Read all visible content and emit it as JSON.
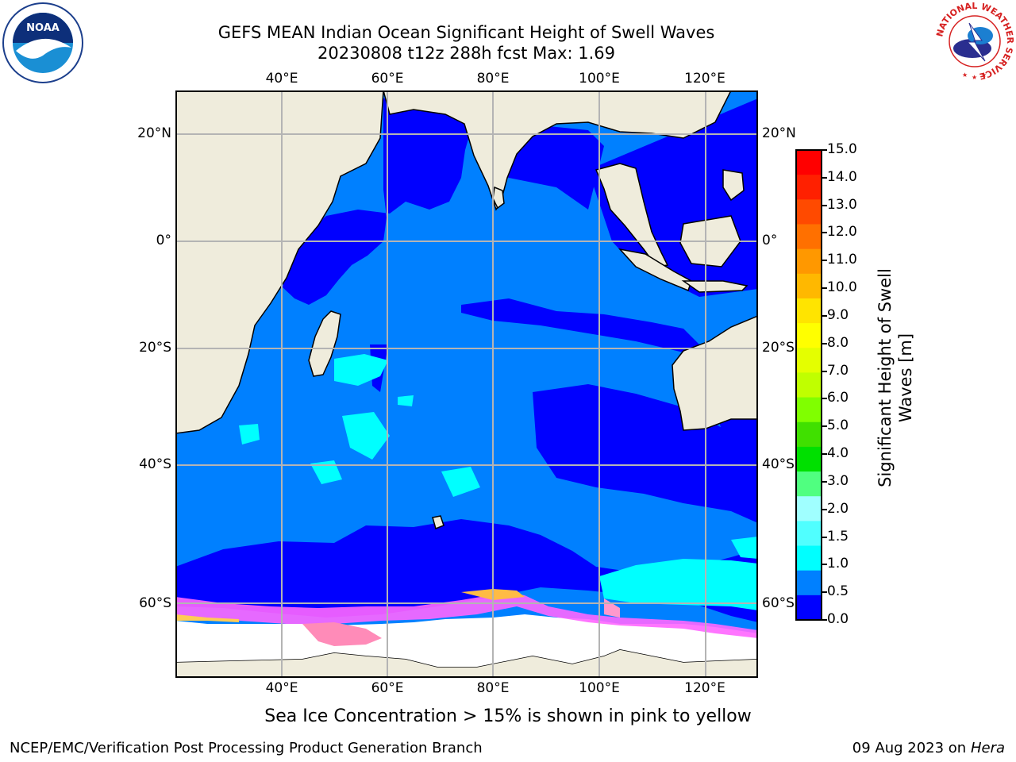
{
  "title": {
    "line1": "GEFS MEAN Indian Ocean Significant Height of Swell Waves",
    "line2": "20230808 t12z 288h fcst   Max: 1.69"
  },
  "map": {
    "lon_labels": [
      "40°E",
      "60°E",
      "80°E",
      "100°E",
      "120°E"
    ],
    "lat_labels": [
      "20°N",
      "0°",
      "20°S",
      "40°S",
      "60°S"
    ],
    "ocean_color": "#0080ff",
    "low_swell_color": "#0000ff",
    "land_color": "#efecdc",
    "ice_color": "#ffffff"
  },
  "colorbar": {
    "label": "Significant Height of Swell Waves [m]",
    "label_line1": "Significant Height of Swell",
    "label_line2": "Waves [m]",
    "ticks": [
      "15.0",
      "14.0",
      "13.0",
      "12.0",
      "11.0",
      "10.0",
      "9.0",
      "8.0",
      "7.0",
      "6.0",
      "5.0",
      "4.0",
      "3.0",
      "2.0",
      "1.5",
      "1.0",
      "0.5",
      "0.0"
    ],
    "colors_top_to_bottom": [
      "#ff0000",
      "#ff2000",
      "#ff4a00",
      "#ff7000",
      "#ff9800",
      "#ffb800",
      "#ffe400",
      "#ffff00",
      "#e4ff00",
      "#c0ff00",
      "#80ff00",
      "#40e000",
      "#00e000",
      "#50ff80",
      "#a0ffff",
      "#50ffff",
      "#00ffff",
      "#0080ff",
      "#0000ff"
    ]
  },
  "ice_note": "Sea Ice Concentration > 15% is shown in pink to yellow",
  "footer": {
    "left": "NCEP/EMC/Verification Post Processing Product Generation Branch",
    "right_date": "09 Aug 2023 on",
    "right_host": "Hera"
  },
  "logos": {
    "noaa": "NOAA",
    "nws_ring": "NATIONAL WEATHER SERVICE"
  },
  "icons": {
    "noaa_logo": "noaa-logo-icon",
    "nws_logo": "nws-logo-icon"
  }
}
